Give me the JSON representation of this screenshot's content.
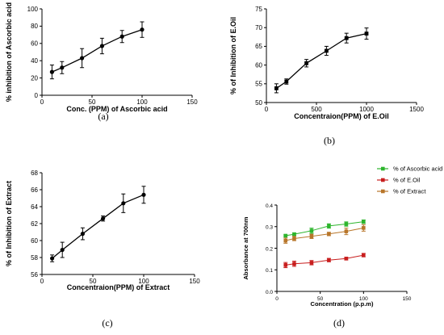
{
  "chart_data": [
    {
      "type": "line",
      "panel_label": "(a)",
      "xlabel": "Conc. (PPM) of Ascorbic acid",
      "ylabel": "% inhibition of Ascorbic acid",
      "xlim": [
        0,
        150
      ],
      "ylim": [
        0,
        100
      ],
      "xticks": [
        0,
        50,
        100,
        150
      ],
      "yticks": [
        0,
        20,
        40,
        60,
        80,
        100
      ],
      "grid": false,
      "series": [
        {
          "color": "#000000",
          "x": [
            10,
            20,
            40,
            60,
            80,
            100
          ],
          "y": [
            27,
            32,
            43,
            57,
            68,
            76
          ],
          "error": [
            8,
            7,
            11,
            9,
            7,
            9
          ]
        }
      ]
    },
    {
      "type": "line",
      "panel_label": "(b)",
      "xlabel": "Concentraion(PPM) of E.Oil",
      "ylabel": "% of Inhibition of E.Oil",
      "xlim": [
        0,
        1500
      ],
      "ylim": [
        50,
        75
      ],
      "xticks": [
        0,
        500,
        1000,
        1500
      ],
      "yticks": [
        50,
        55,
        60,
        65,
        70,
        75
      ],
      "grid": false,
      "series": [
        {
          "color": "#000000",
          "x": [
            100,
            200,
            400,
            600,
            800,
            1000
          ],
          "y": [
            53.8,
            55.6,
            60.5,
            63.8,
            67.2,
            68.4
          ],
          "error": [
            1.2,
            0.7,
            1.0,
            1.2,
            1.3,
            1.5
          ]
        }
      ]
    },
    {
      "type": "line",
      "panel_label": "(c)",
      "xlabel": "Concentraion(PPM) of Extract",
      "ylabel": "% of Inhibition of Extract",
      "xlim": [
        0,
        150
      ],
      "ylim": [
        56,
        68
      ],
      "xticks": [
        0,
        50,
        100,
        150
      ],
      "yticks": [
        56,
        58,
        60,
        62,
        64,
        66,
        68
      ],
      "grid": false,
      "series": [
        {
          "color": "#000000",
          "x": [
            10,
            20,
            40,
            60,
            80,
            100
          ],
          "y": [
            57.9,
            58.9,
            60.8,
            62.6,
            64.4,
            65.4
          ],
          "error": [
            0.4,
            0.9,
            0.7,
            0.3,
            1.1,
            1.0
          ]
        }
      ]
    },
    {
      "type": "line",
      "panel_label": "(d)",
      "xlabel": "Concentration (p.p.m)",
      "ylabel": "Absorbance at 700nm",
      "xlim": [
        0,
        150
      ],
      "ylim": [
        0.0,
        0.4
      ],
      "xticks": [
        0,
        50,
        100,
        150
      ],
      "yticks": [
        0.0,
        0.1,
        0.2,
        0.3,
        0.4
      ],
      "grid": false,
      "legend_position": "top-right",
      "series": [
        {
          "name": "% of Ascorbic acid",
          "color": "#2db52d",
          "x": [
            10,
            20,
            40,
            60,
            80,
            100
          ],
          "y": [
            0.258,
            0.265,
            0.281,
            0.303,
            0.312,
            0.323
          ],
          "error": [
            0.004,
            0.005,
            0.012,
            0.01,
            0.01,
            0.008
          ]
        },
        {
          "name": "% of E.Oil",
          "color": "#c81e1e",
          "x": [
            10,
            20,
            40,
            60,
            80,
            100
          ],
          "y": [
            0.122,
            0.128,
            0.133,
            0.145,
            0.152,
            0.168
          ],
          "error": [
            0.012,
            0.012,
            0.01,
            0.008,
            0.006,
            0.008
          ]
        },
        {
          "name": "% of Extract",
          "color": "#b8762a",
          "x": [
            10,
            20,
            40,
            60,
            80,
            100
          ],
          "y": [
            0.235,
            0.245,
            0.255,
            0.266,
            0.278,
            0.294
          ],
          "error": [
            0.012,
            0.01,
            0.01,
            0.008,
            0.015,
            0.015
          ]
        }
      ]
    }
  ]
}
